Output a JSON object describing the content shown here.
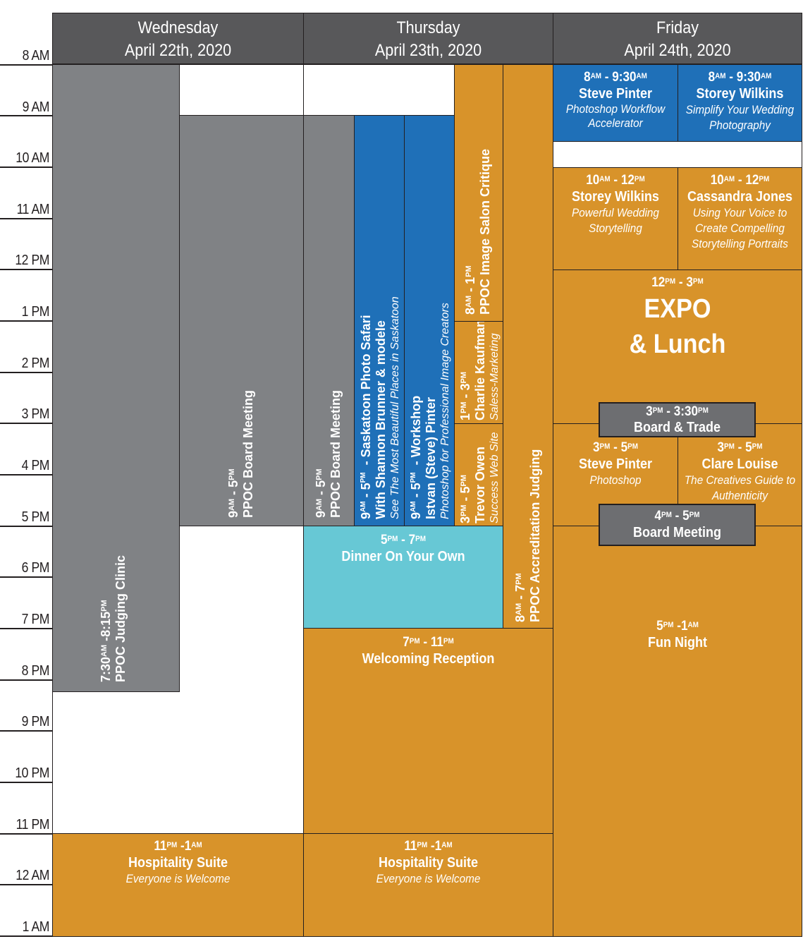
{
  "time_axis": [
    "8 AM",
    "9 AM",
    "10 AM",
    "11 AM",
    "12 PM",
    "1 PM",
    "2 PM",
    "3 PM",
    "4 PM",
    "5 PM",
    "6 PM",
    "7 PM",
    "8 PM",
    "9 PM",
    "10 PM",
    "11 PM",
    "12 AM",
    "1 AM"
  ],
  "days": [
    {
      "weekday": "Wednesday",
      "date": "April 22th, 2020"
    },
    {
      "weekday": "Thursday",
      "date": "April 23th, 2020"
    },
    {
      "weekday": "Friday",
      "date": "April 24th, 2020"
    }
  ],
  "colors": {
    "gray": "#808285",
    "orange": "#d8932a",
    "blue": "#1f70b8",
    "cyan": "#67c8d5",
    "header": "#58585a"
  },
  "events": {
    "judging_clinic": {
      "start": "7:30",
      "start_sfx": "AM",
      "end": "8:15",
      "end_sfx": "PM",
      "title": "PPOC Judging Clinic"
    },
    "wed_board": {
      "start": "9",
      "start_sfx": "AM",
      "end": "5",
      "end_sfx": "PM",
      "title": "PPOC Board Meeting"
    },
    "thu_board": {
      "start": "9",
      "start_sfx": "AM",
      "end": "5",
      "end_sfx": "PM",
      "title": "PPOC Board Meeting"
    },
    "photo_safari": {
      "start": "9",
      "start_sfx": "AM",
      "end": "5",
      "end_sfx": "PM",
      "title": "Saskatoon Photo Safari",
      "line2": "With Shannon Brunner & modele",
      "sub": "See The Most Beautiful Places in Saskatoon"
    },
    "workshop": {
      "start": "9",
      "start_sfx": "AM",
      "end": "5",
      "end_sfx": "PM",
      "title": "Workshop",
      "line2": "Istvan (Steve) Pinter",
      "sub": "Photoshop for Professional Image Creators"
    },
    "salon_critique": {
      "start": "8",
      "start_sfx": "AM",
      "end": "1",
      "end_sfx": "PM",
      "title": "PPOC Image Salon Critique"
    },
    "charlie": {
      "start": "1",
      "start_sfx": "PM",
      "end": "3",
      "end_sfx": "PM",
      "title": "Charlie Kaufman",
      "sub": "Saless-Marketing"
    },
    "trevor": {
      "start": "3",
      "start_sfx": "PM",
      "end": "5",
      "end_sfx": "PM",
      "title": "Trevor Owen",
      "sub": "Success Web Site"
    },
    "accreditation": {
      "start": "8",
      "start_sfx": "AM",
      "end": "7",
      "end_sfx": "PM",
      "title": "PPOC Accreditation Judging"
    },
    "dinner": {
      "start": "5",
      "start_sfx": "PM",
      "end": "7",
      "end_sfx": "PM",
      "title": "Dinner On Your Own"
    },
    "reception": {
      "start": "7",
      "start_sfx": "PM",
      "end": "11",
      "end_sfx": "PM",
      "title": "Welcoming Reception"
    },
    "wed_hospitality": {
      "start": "11",
      "start_sfx": "PM",
      "end": "1",
      "end_sfx": "AM",
      "title": "Hospitality Suite",
      "sub": "Everyone is Welcome"
    },
    "thu_hospitality": {
      "start": "11",
      "start_sfx": "PM",
      "end": "1",
      "end_sfx": "AM",
      "title": "Hospitality Suite",
      "sub": "Everyone is Welcome"
    },
    "fri_pinter1": {
      "start": "8",
      "start_sfx": "AM",
      "end": "9:30",
      "end_sfx": "AM",
      "title": "Steve Pinter",
      "sub": "Photoshop Workflow Accelerator"
    },
    "fri_wilkins1": {
      "start": "8",
      "start_sfx": "AM",
      "end": "9:30",
      "end_sfx": "AM",
      "title": "Storey Wilkins",
      "sub": "Simplify Your Wedding Photography"
    },
    "fri_wilkins2": {
      "start": "10",
      "start_sfx": "AM",
      "end": "12",
      "end_sfx": "PM",
      "title": "Storey Wilkins",
      "sub": "Powerful Wedding Storytelling"
    },
    "fri_jones": {
      "start": "10",
      "start_sfx": "AM",
      "end": "12",
      "end_sfx": "PM",
      "title": "Cassandra Jones",
      "sub": "Using Your Voice to Create Compelling Storytelling Portraits"
    },
    "expo": {
      "start": "12",
      "start_sfx": "PM",
      "end": "3",
      "end_sfx": "PM",
      "title": "EXPO",
      "line2": "& Lunch"
    },
    "board_trade": {
      "start": "3",
      "start_sfx": "PM",
      "end": "3:30",
      "end_sfx": "PM",
      "title": "Board & Trade"
    },
    "fri_pinter2": {
      "start": "3",
      "start_sfx": "PM",
      "end": "5",
      "end_sfx": "PM",
      "title": "Steve Pinter",
      "sub": "Photoshop"
    },
    "fri_louise": {
      "start": "3",
      "start_sfx": "PM",
      "end": "5",
      "end_sfx": "PM",
      "title": "Clare Louise",
      "sub": "The Creatives Guide to Authenticity"
    },
    "fri_board": {
      "start": "4",
      "start_sfx": "PM",
      "end": "5",
      "end_sfx": "PM",
      "title": "Board Meeting"
    },
    "fun_night": {
      "start": "5",
      "start_sfx": "PM",
      "end": "1",
      "end_sfx": "AM",
      "title": "Fun Night"
    }
  }
}
